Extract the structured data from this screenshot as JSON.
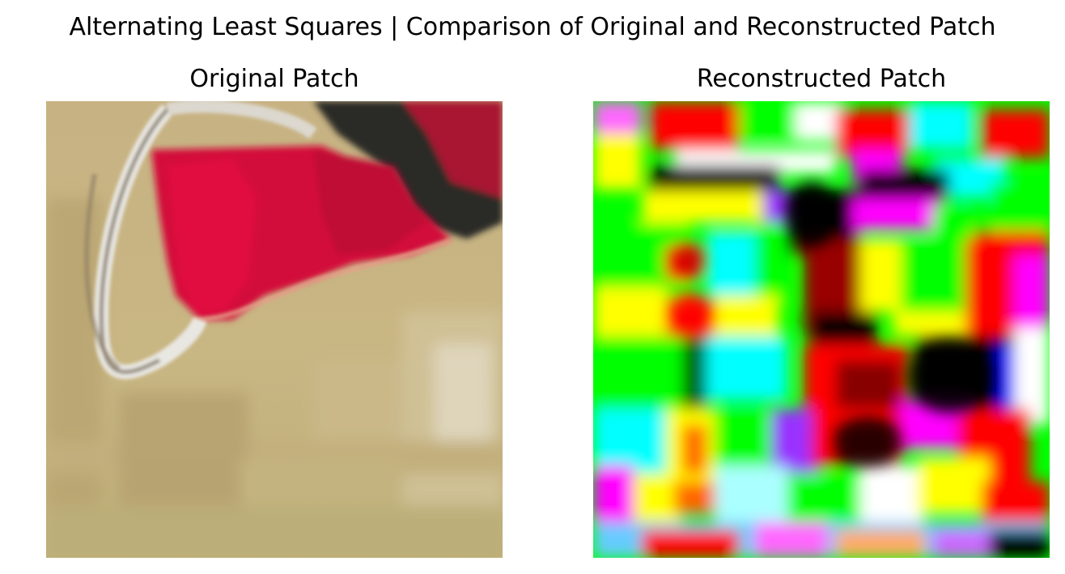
{
  "figure": {
    "suptitle": "Alternating Least Squares | Comparison of Original and Reconstructed Patch"
  },
  "panels": [
    {
      "title": "Original Patch",
      "content": "photo crop: tan/khaki fabric with a red strap and a silver metal ring, dark strap at top-right"
    },
    {
      "title": "Reconstructed Patch",
      "content": "noisy saturated reconstruction with blocks of green, red, magenta, cyan, yellow, black and white"
    }
  ],
  "colors": {
    "fabric_tan": "#c4b07e",
    "fabric_dark": "#a89565",
    "strap_red": "#d4103a",
    "strap_dark": "#2c2a28",
    "ring_silver": "#e3e1dc",
    "green": "#00ff00",
    "red": "#ff0000",
    "magenta": "#ff00ff",
    "cyan": "#00ffff",
    "yellow": "#ffff00",
    "black": "#000000",
    "white": "#ffffff"
  }
}
